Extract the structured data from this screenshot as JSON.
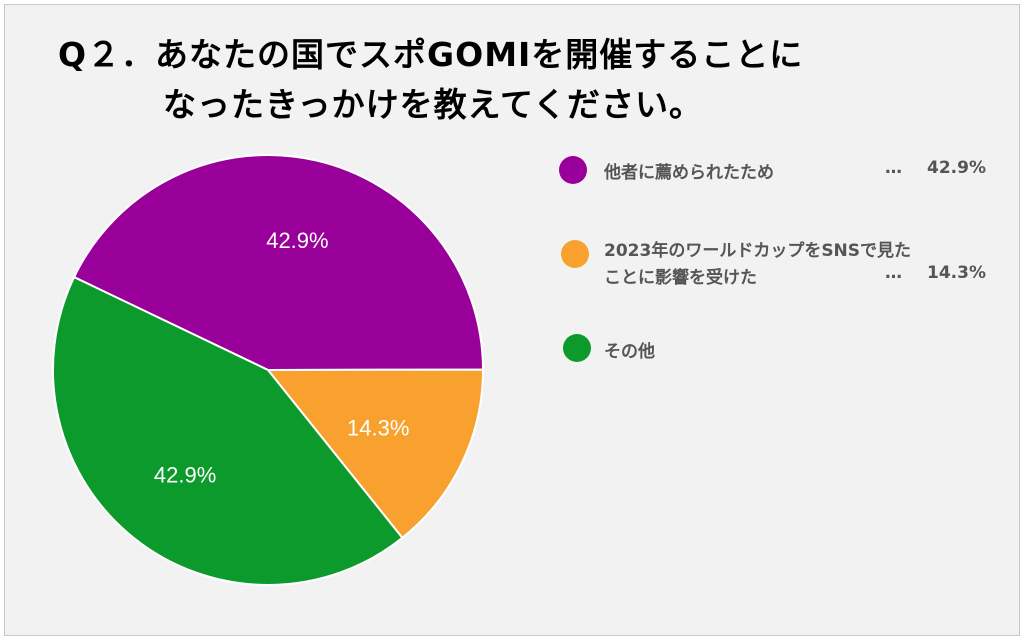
{
  "chart_data": {
    "type": "pie",
    "title": "Q２．あなたの国でスポGOMIを開催することになったきっかけを教えてください。",
    "title_lines": [
      "Q２．あなたの国でスポGOMIを開催することに",
      "なったきっかけを教えてください。"
    ],
    "legend_position": "right",
    "slices": [
      {
        "label": "他者に薦められたため",
        "value": 42.9,
        "label_text": "42.9%",
        "color": "#990099"
      },
      {
        "label": "2023年のワールドカップをSNSで見たことに影響を受けた",
        "label_lines": [
          "2023年のワールドカップをSNSで見た",
          "ことに影響を受けた"
        ],
        "value": 14.3,
        "label_text": "14.3%",
        "color": "#f9a12e"
      },
      {
        "label": "その他",
        "value": 42.9,
        "label_text": "42.9%",
        "color": "#0c9a2c"
      }
    ],
    "ellipsis": "…"
  }
}
